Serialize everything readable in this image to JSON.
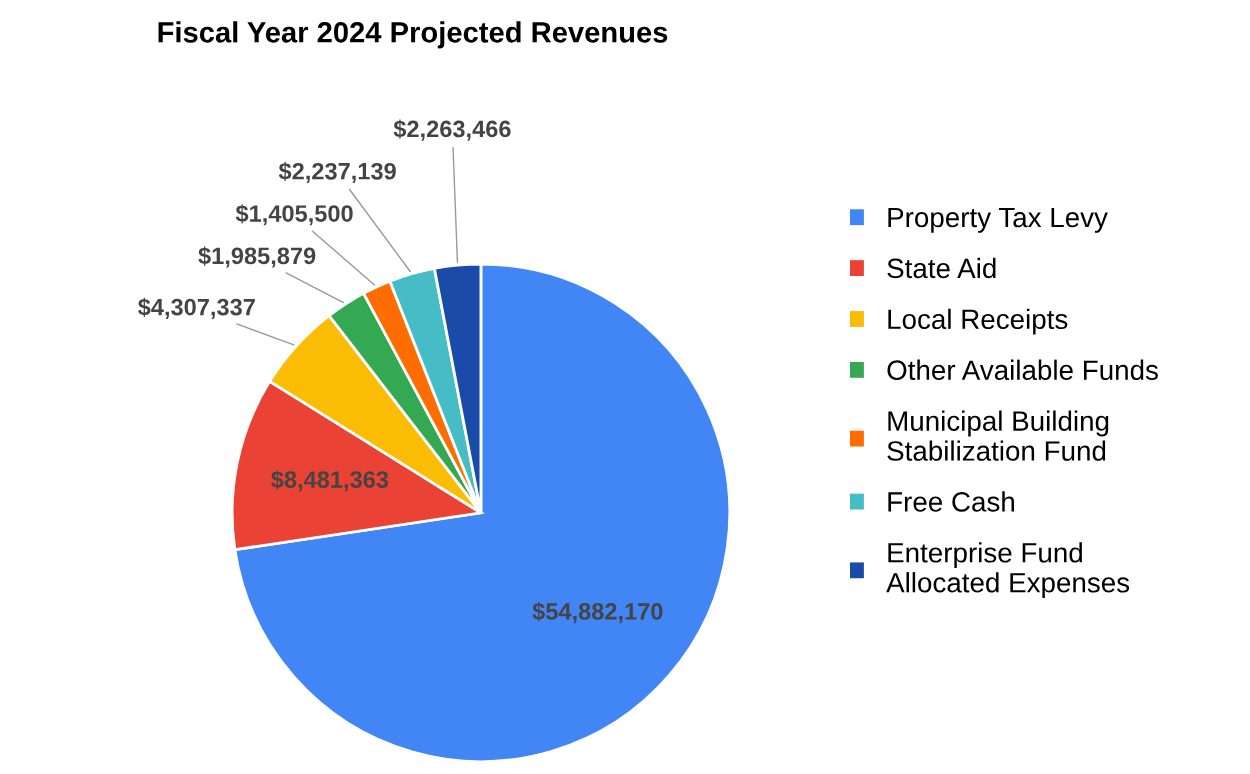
{
  "chart_data": {
    "type": "pie",
    "title": "Fiscal Year 2024 Projected Revenues",
    "categories": [
      "Property Tax Levy",
      "State Aid",
      "Local Receipts",
      "Other Available Funds",
      "Municipal Building Stabilization Fund",
      "Free Cash",
      "Enterprise Fund Allocated Expenses"
    ],
    "values": [
      54882170,
      8481363,
      4307337,
      1985879,
      1405500,
      2237139,
      2263466
    ],
    "colors": [
      "#4285f4",
      "#ea4335",
      "#fbbc04",
      "#34a853",
      "#ff6d01",
      "#46bdc6",
      "#1a4ba8"
    ],
    "value_labels": [
      "$54,882,170",
      "$8,481,363",
      "$4,307,337",
      "$1,985,879",
      "$1,405,500",
      "$2,237,139",
      "$2,263,466"
    ],
    "legend": "right"
  }
}
